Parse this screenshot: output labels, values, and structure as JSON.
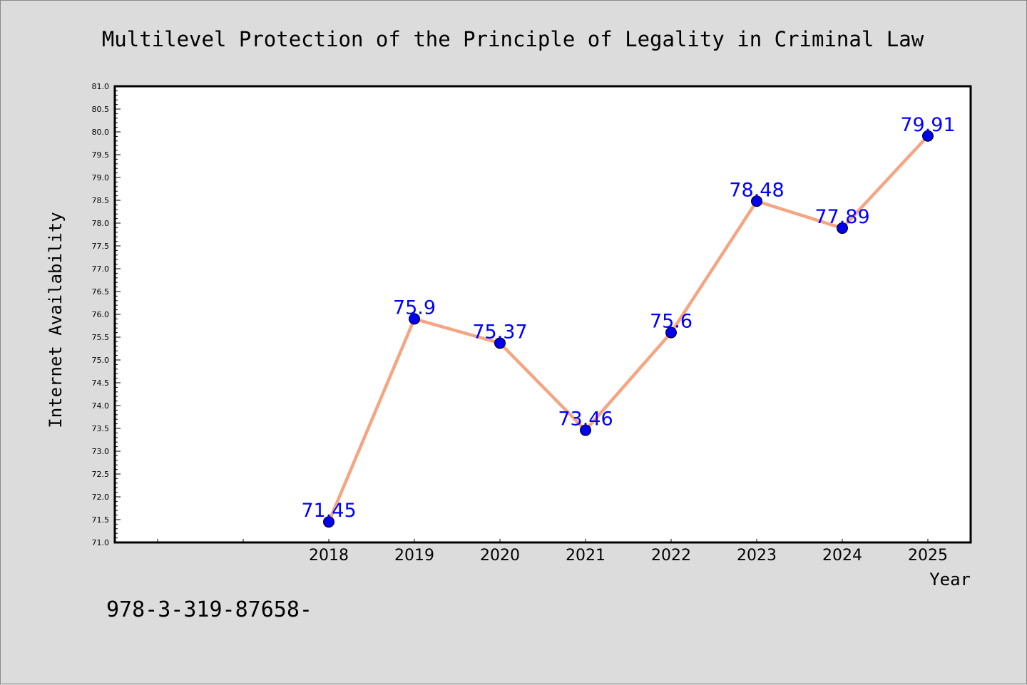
{
  "chart_data": {
    "type": "line",
    "title": "Multilevel Protection of the Principle of Legality in Criminal Law",
    "xlabel": "Year",
    "ylabel": "Internet Availability",
    "x": [
      "2018",
      "2019",
      "2020",
      "2021",
      "2022",
      "2023",
      "2024",
      "2025"
    ],
    "series": [
      {
        "values": [
          71.45,
          75.9,
          75.37,
          73.46,
          75.6,
          78.48,
          77.89,
          79.91
        ],
        "data_labels": [
          "71.45",
          "75.9",
          "75.37",
          "73.46",
          "75.6",
          "78.48",
          "77.89",
          "79.91"
        ]
      }
    ],
    "ylim": [
      71.0,
      81.0
    ],
    "y_ticks": [
      "71.0",
      "71.5",
      "72.0",
      "72.5",
      "73.0",
      "73.5",
      "74.0",
      "74.5",
      "75.0",
      "75.5",
      "76.0",
      "76.5",
      "77.0",
      "77.5",
      "78.0",
      "78.5",
      "79.0",
      "79.5",
      "80.0",
      "80.5",
      "81.0"
    ],
    "grid": false,
    "legend": "none",
    "colors": {
      "line": "#f4a582",
      "marker": "#0000ee",
      "data_label": "#0000ff",
      "background": "#dcdcdc",
      "plot_background": "#ffffff",
      "axis": "#000000"
    }
  },
  "footer": {
    "code": "978-3-319-87658-"
  }
}
